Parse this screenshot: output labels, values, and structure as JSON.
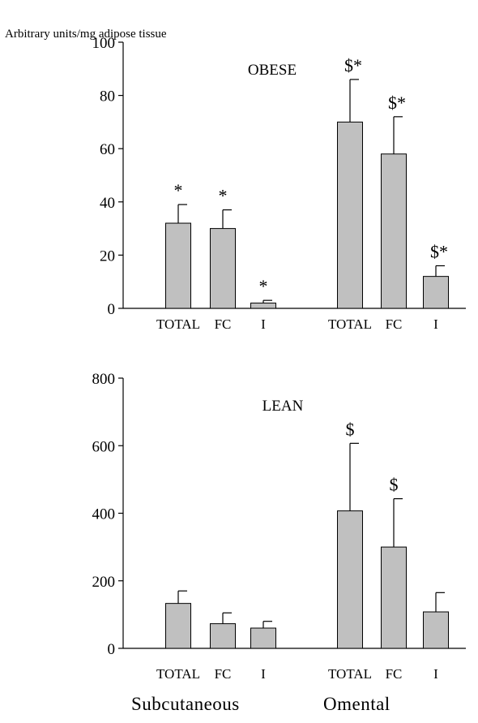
{
  "figure": {
    "unit_label": "Arbitrary units/mg adipose tissue",
    "groups": [
      "Subcutaneous",
      "Omental"
    ]
  },
  "chart_data": [
    {
      "type": "bar",
      "title": "OBESE",
      "ylabel": "Arbitrary units/mg adipose tissue",
      "ylim": [
        0,
        100
      ],
      "yticks": [
        0,
        20,
        40,
        60,
        80,
        100
      ],
      "groups": [
        "Subcutaneous",
        "Omental"
      ],
      "categories": [
        "TOTAL",
        "FC",
        "I",
        "TOTAL",
        "FC",
        "I"
      ],
      "bar_color": "#c0c0c0",
      "values": [
        32,
        30,
        2,
        70,
        58,
        12
      ],
      "errors": [
        7,
        7,
        1,
        16,
        14,
        4
      ],
      "annotations": [
        "*",
        "*",
        "*",
        "$*",
        "$*",
        "$*"
      ]
    },
    {
      "type": "bar",
      "title": "LEAN",
      "ylabel": "Arbitrary units/mg adipose tissue",
      "ylim": [
        0,
        800
      ],
      "yticks": [
        0,
        200,
        400,
        600,
        800
      ],
      "groups": [
        "Subcutaneous",
        "Omental"
      ],
      "categories": [
        "TOTAL",
        "FC",
        "I",
        "TOTAL",
        "FC",
        "I"
      ],
      "bar_color": "#c0c0c0",
      "values": [
        133,
        73,
        60,
        407,
        300,
        108
      ],
      "errors": [
        37,
        32,
        20,
        200,
        143,
        57
      ],
      "annotations": [
        "",
        "",
        "",
        "$",
        "$",
        ""
      ]
    }
  ]
}
